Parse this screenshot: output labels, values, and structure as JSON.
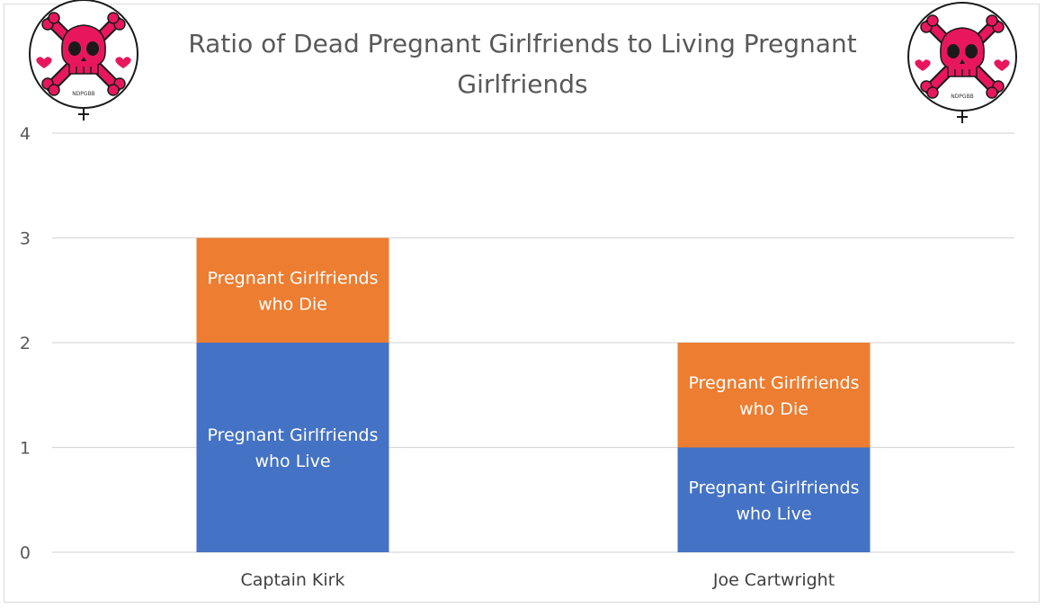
{
  "chart_data": {
    "type": "bar",
    "stacked": true,
    "title": "Ratio of Dead Pregnant Girlfriends to Living Pregnant Girlfriends",
    "title_lines": [
      "Ratio of Dead Pregnant Girlfriends to Living Pregnant",
      "Girlfriends"
    ],
    "categories": [
      "Captain Kirk",
      "Joe Cartwright"
    ],
    "series": [
      {
        "name": "Pregnant Girlfriends who Live",
        "label_lines": [
          "Pregnant Girlfriends",
          "who Live"
        ],
        "color": "#4472c4",
        "values": [
          2,
          1
        ]
      },
      {
        "name": "Pregnant Girlfriends who Die",
        "label_lines": [
          "Pregnant Girlfriends",
          "who Die"
        ],
        "color": "#ed7d31",
        "values": [
          1,
          1
        ]
      }
    ],
    "ylim": [
      0,
      4
    ],
    "yticks": [
      0,
      1,
      2,
      3,
      4
    ],
    "grid": true,
    "legend": "none",
    "xlabel": "",
    "ylabel": ""
  },
  "decorations": {
    "icon": "skull-crossbones-icon",
    "icon_text": "NDPGBB",
    "icon_color": "#e8175d",
    "icon_dark": "#2a0a14"
  }
}
